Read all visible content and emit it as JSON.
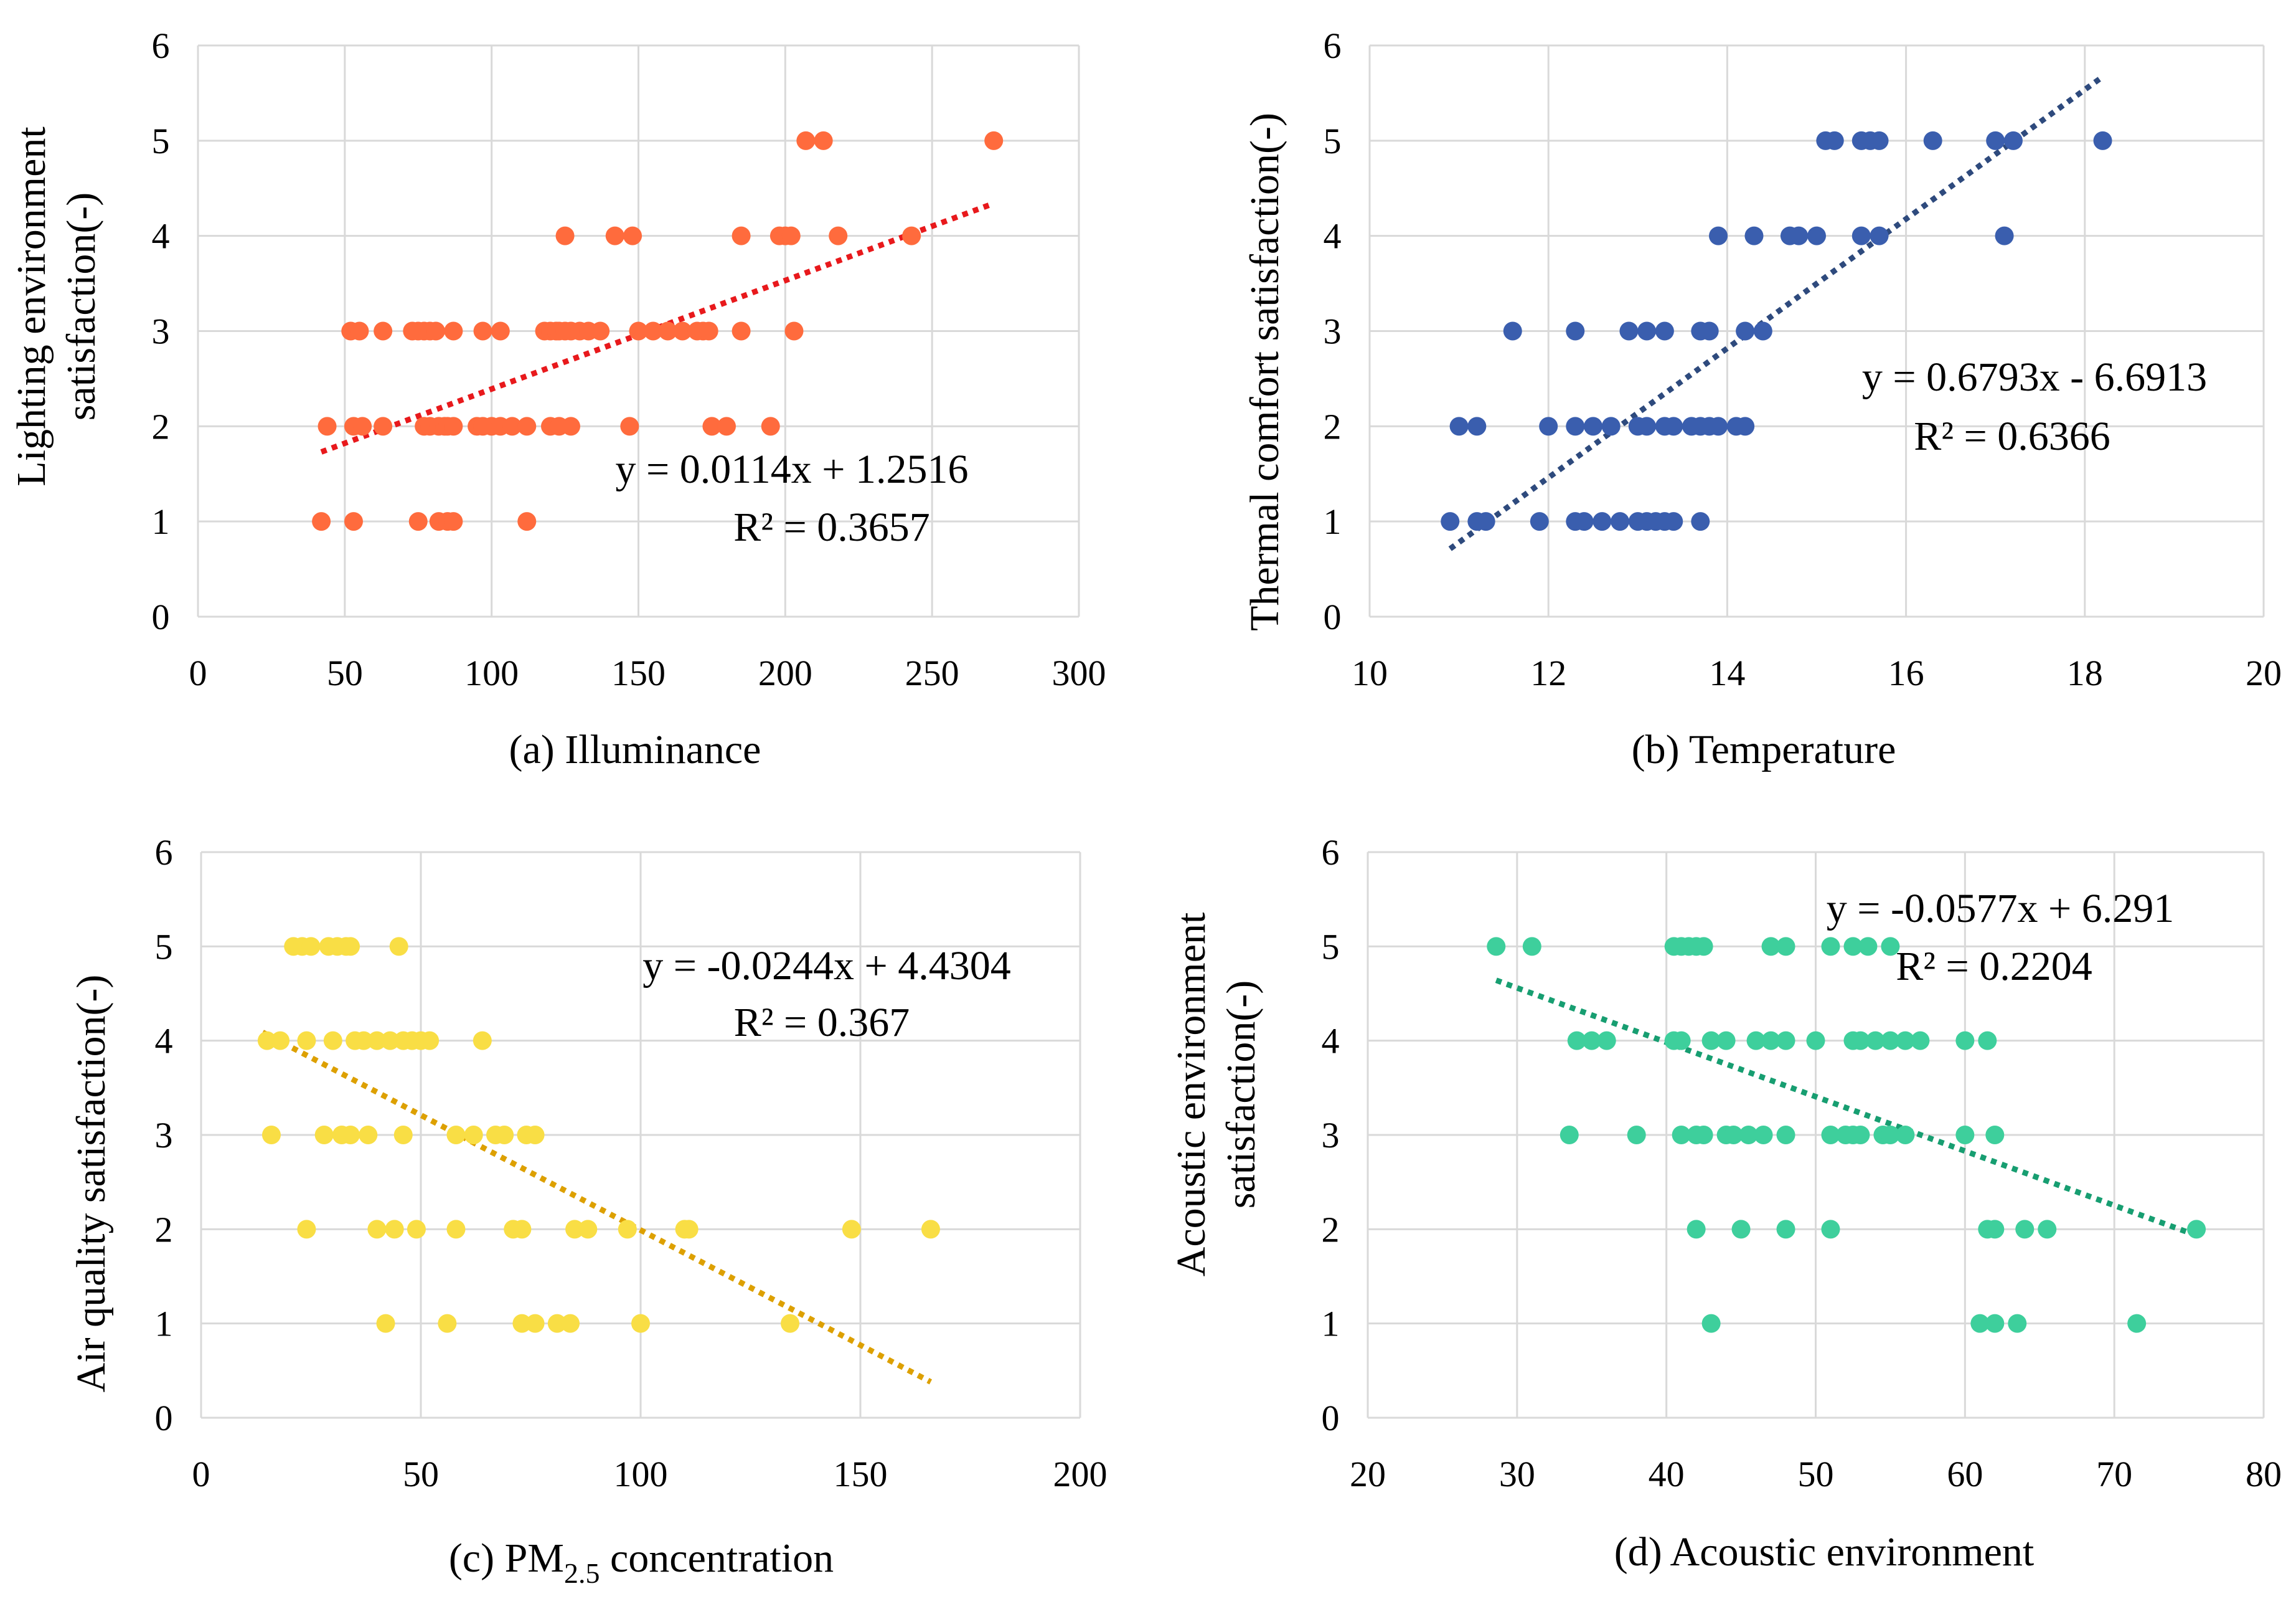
{
  "chart_data": [
    {
      "type": "scatter",
      "caption": "(a) Illuminance",
      "ylabel_lines": [
        "Lighting environment",
        "satisfaction(-)"
      ],
      "xlim": [
        0,
        300
      ],
      "ylim": [
        0,
        6
      ],
      "xticks": [
        "0",
        "50",
        "100",
        "150",
        "200",
        "250",
        "300"
      ],
      "yticks": [
        "0",
        "1",
        "2",
        "3",
        "4",
        "5",
        "6"
      ],
      "grid": true,
      "marker_color": "#FF6B3D",
      "trend_color": "#E8191C",
      "equation": "y = 0.0114x + 1.2516",
      "r2": "R² = 0.3657",
      "trendline": {
        "slope": 0.0114,
        "intercept": 1.2516,
        "x_range": [
          42,
          271
        ]
      },
      "points": [
        [
          42,
          1
        ],
        [
          53,
          1
        ],
        [
          75,
          1
        ],
        [
          82,
          1
        ],
        [
          85,
          1
        ],
        [
          87,
          1
        ],
        [
          112,
          1
        ],
        [
          44,
          2
        ],
        [
          53,
          2
        ],
        [
          56,
          2
        ],
        [
          63,
          2
        ],
        [
          77,
          2
        ],
        [
          79,
          2
        ],
        [
          82,
          2
        ],
        [
          84,
          2
        ],
        [
          85,
          2
        ],
        [
          87,
          2
        ],
        [
          95,
          2
        ],
        [
          97,
          2
        ],
        [
          100,
          2
        ],
        [
          103,
          2
        ],
        [
          107,
          2
        ],
        [
          112,
          2
        ],
        [
          120,
          2
        ],
        [
          123,
          2
        ],
        [
          127,
          2
        ],
        [
          147,
          2
        ],
        [
          175,
          2
        ],
        [
          180,
          2
        ],
        [
          195,
          2
        ],
        [
          52,
          3
        ],
        [
          55,
          3
        ],
        [
          63,
          3
        ],
        [
          73,
          3
        ],
        [
          75,
          3
        ],
        [
          77,
          3
        ],
        [
          79,
          3
        ],
        [
          81,
          3
        ],
        [
          87,
          3
        ],
        [
          97,
          3
        ],
        [
          103,
          3
        ],
        [
          118,
          3
        ],
        [
          120,
          3
        ],
        [
          122,
          3
        ],
        [
          123,
          3
        ],
        [
          125,
          3
        ],
        [
          127,
          3
        ],
        [
          130,
          3
        ],
        [
          133,
          3
        ],
        [
          137,
          3
        ],
        [
          150,
          3
        ],
        [
          155,
          3
        ],
        [
          160,
          3
        ],
        [
          165,
          3
        ],
        [
          170,
          3
        ],
        [
          172,
          3
        ],
        [
          174,
          3
        ],
        [
          185,
          3
        ],
        [
          203,
          3
        ],
        [
          125,
          4
        ],
        [
          142,
          4
        ],
        [
          148,
          4
        ],
        [
          185,
          4
        ],
        [
          198,
          4
        ],
        [
          200,
          4
        ],
        [
          202,
          4
        ],
        [
          218,
          4
        ],
        [
          243,
          4
        ],
        [
          207,
          5
        ],
        [
          213,
          5
        ],
        [
          271,
          5
        ]
      ]
    },
    {
      "type": "scatter",
      "caption": "(b) Temperature",
      "ylabel_lines": [
        "Thermal comfort satisfaction(-)"
      ],
      "xlim": [
        10,
        20
      ],
      "ylim": [
        0,
        6
      ],
      "xticks": [
        "10",
        "12",
        "14",
        "16",
        "18",
        "20"
      ],
      "yticks": [
        "0",
        "1",
        "2",
        "3",
        "4",
        "5",
        "6"
      ],
      "grid": true,
      "marker_color": "#3A5EAE",
      "trend_color": "#2E4A7D",
      "equation": "y = 0.6793x - 6.6913",
      "r2": "R² = 0.6366",
      "trendline": {
        "slope": 0.6793,
        "intercept": -6.6913,
        "x_range": [
          10.9,
          18.2
        ]
      },
      "points": [
        [
          10.9,
          1
        ],
        [
          11.2,
          1
        ],
        [
          11.3,
          1
        ],
        [
          11.9,
          1
        ],
        [
          12.3,
          1
        ],
        [
          12.4,
          1
        ],
        [
          12.6,
          1
        ],
        [
          12.8,
          1
        ],
        [
          13.0,
          1
        ],
        [
          13.1,
          1
        ],
        [
          13.2,
          1
        ],
        [
          13.3,
          1
        ],
        [
          13.4,
          1
        ],
        [
          13.7,
          1
        ],
        [
          11.0,
          2
        ],
        [
          11.2,
          2
        ],
        [
          12.0,
          2
        ],
        [
          12.3,
          2
        ],
        [
          12.5,
          2
        ],
        [
          12.7,
          2
        ],
        [
          13.0,
          2
        ],
        [
          13.1,
          2
        ],
        [
          13.3,
          2
        ],
        [
          13.4,
          2
        ],
        [
          13.6,
          2
        ],
        [
          13.7,
          2
        ],
        [
          13.8,
          2
        ],
        [
          13.9,
          2
        ],
        [
          14.1,
          2
        ],
        [
          14.2,
          2
        ],
        [
          11.6,
          3
        ],
        [
          12.3,
          3
        ],
        [
          12.9,
          3
        ],
        [
          13.1,
          3
        ],
        [
          13.3,
          3
        ],
        [
          13.7,
          3
        ],
        [
          13.8,
          3
        ],
        [
          14.2,
          3
        ],
        [
          14.4,
          3
        ],
        [
          13.9,
          4
        ],
        [
          14.3,
          4
        ],
        [
          14.7,
          4
        ],
        [
          14.8,
          4
        ],
        [
          15.0,
          4
        ],
        [
          15.5,
          4
        ],
        [
          15.7,
          4
        ],
        [
          17.1,
          4
        ],
        [
          15.1,
          5
        ],
        [
          15.2,
          5
        ],
        [
          15.5,
          5
        ],
        [
          15.6,
          5
        ],
        [
          15.7,
          5
        ],
        [
          16.3,
          5
        ],
        [
          17.0,
          5
        ],
        [
          17.2,
          5
        ],
        [
          18.2,
          5
        ]
      ]
    },
    {
      "type": "scatter",
      "caption_main": "(c) PM",
      "caption_sub": "2.5",
      "caption_tail": " concentration",
      "ylabel_lines": [
        "Air quality satisfaction(-)"
      ],
      "xlim": [
        0,
        200
      ],
      "ylim": [
        0,
        6
      ],
      "xticks": [
        "0",
        "50",
        "100",
        "150",
        "200"
      ],
      "yticks": [
        "0",
        "1",
        "2",
        "3",
        "4",
        "5",
        "6"
      ],
      "grid": true,
      "marker_color": "#F9DE45",
      "trend_color": "#DDA000",
      "equation": "y = -0.0244x + 4.4304",
      "r2": "R² = 0.367",
      "trendline": {
        "slope": -0.0244,
        "intercept": 4.4304,
        "x_range": [
          14,
          166
        ]
      },
      "points": [
        [
          42,
          1
        ],
        [
          56,
          1
        ],
        [
          73,
          1
        ],
        [
          76,
          1
        ],
        [
          81,
          1
        ],
        [
          84,
          1
        ],
        [
          100,
          1
        ],
        [
          134,
          1
        ],
        [
          24,
          2
        ],
        [
          40,
          2
        ],
        [
          44,
          2
        ],
        [
          49,
          2
        ],
        [
          58,
          2
        ],
        [
          71,
          2
        ],
        [
          73,
          2
        ],
        [
          85,
          2
        ],
        [
          88,
          2
        ],
        [
          97,
          2
        ],
        [
          110,
          2
        ],
        [
          111,
          2
        ],
        [
          148,
          2
        ],
        [
          166,
          2
        ],
        [
          16,
          3
        ],
        [
          28,
          3
        ],
        [
          32,
          3
        ],
        [
          34,
          3
        ],
        [
          38,
          3
        ],
        [
          46,
          3
        ],
        [
          58,
          3
        ],
        [
          62,
          3
        ],
        [
          67,
          3
        ],
        [
          69,
          3
        ],
        [
          74,
          3
        ],
        [
          76,
          3
        ],
        [
          15,
          4
        ],
        [
          18,
          4
        ],
        [
          24,
          4
        ],
        [
          30,
          4
        ],
        [
          35,
          4
        ],
        [
          37,
          4
        ],
        [
          40,
          4
        ],
        [
          43,
          4
        ],
        [
          46,
          4
        ],
        [
          48,
          4
        ],
        [
          50,
          4
        ],
        [
          52,
          4
        ],
        [
          64,
          4
        ],
        [
          21,
          5
        ],
        [
          23,
          5
        ],
        [
          25,
          5
        ],
        [
          29,
          5
        ],
        [
          31,
          5
        ],
        [
          33,
          5
        ],
        [
          34,
          5
        ],
        [
          45,
          5
        ]
      ]
    },
    {
      "type": "scatter",
      "caption": "(d) Acoustic environment",
      "ylabel_lines": [
        "Acoustic environment",
        "satisfaction(-)"
      ],
      "xlim": [
        20,
        80
      ],
      "ylim": [
        0,
        6
      ],
      "xticks": [
        "20",
        "30",
        "40",
        "50",
        "60",
        "70",
        "80"
      ],
      "yticks": [
        "0",
        "1",
        "2",
        "3",
        "4",
        "5",
        "6"
      ],
      "grid": true,
      "marker_color": "#3ECF9C",
      "trend_color": "#179E71",
      "equation": "y = -0.0577x + 6.291",
      "r2": "R² = 0.2204",
      "trendline": {
        "slope": -0.0577,
        "intercept": 6.291,
        "x_range": [
          28.6,
          75.6
        ]
      },
      "points": [
        [
          43,
          1
        ],
        [
          61,
          1
        ],
        [
          62,
          1
        ],
        [
          63.5,
          1
        ],
        [
          71.5,
          1
        ],
        [
          42,
          2
        ],
        [
          45,
          2
        ],
        [
          48,
          2
        ],
        [
          51,
          2
        ],
        [
          61.5,
          2
        ],
        [
          62,
          2
        ],
        [
          64,
          2
        ],
        [
          65.5,
          2
        ],
        [
          75.5,
          2
        ],
        [
          33.5,
          3
        ],
        [
          38,
          3
        ],
        [
          41,
          3
        ],
        [
          42,
          3
        ],
        [
          42.5,
          3
        ],
        [
          44,
          3
        ],
        [
          44.5,
          3
        ],
        [
          45.5,
          3
        ],
        [
          46.5,
          3
        ],
        [
          48,
          3
        ],
        [
          51,
          3
        ],
        [
          52,
          3
        ],
        [
          52.5,
          3
        ],
        [
          53,
          3
        ],
        [
          54.5,
          3
        ],
        [
          55,
          3
        ],
        [
          56,
          3
        ],
        [
          60,
          3
        ],
        [
          62,
          3
        ],
        [
          34,
          4
        ],
        [
          35,
          4
        ],
        [
          36,
          4
        ],
        [
          40.5,
          4
        ],
        [
          41,
          4
        ],
        [
          43,
          4
        ],
        [
          44,
          4
        ],
        [
          46,
          4
        ],
        [
          47,
          4
        ],
        [
          48,
          4
        ],
        [
          50,
          4
        ],
        [
          52.5,
          4
        ],
        [
          53,
          4
        ],
        [
          54,
          4
        ],
        [
          55,
          4
        ],
        [
          56,
          4
        ],
        [
          57,
          4
        ],
        [
          60,
          4
        ],
        [
          61.5,
          4
        ],
        [
          28.6,
          5
        ],
        [
          31,
          5
        ],
        [
          40.5,
          5
        ],
        [
          41,
          5
        ],
        [
          41.5,
          5
        ],
        [
          42,
          5
        ],
        [
          42.5,
          5
        ],
        [
          47,
          5
        ],
        [
          48,
          5
        ],
        [
          51,
          5
        ],
        [
          52.5,
          5
        ],
        [
          53.5,
          5
        ],
        [
          55,
          5
        ]
      ]
    }
  ]
}
